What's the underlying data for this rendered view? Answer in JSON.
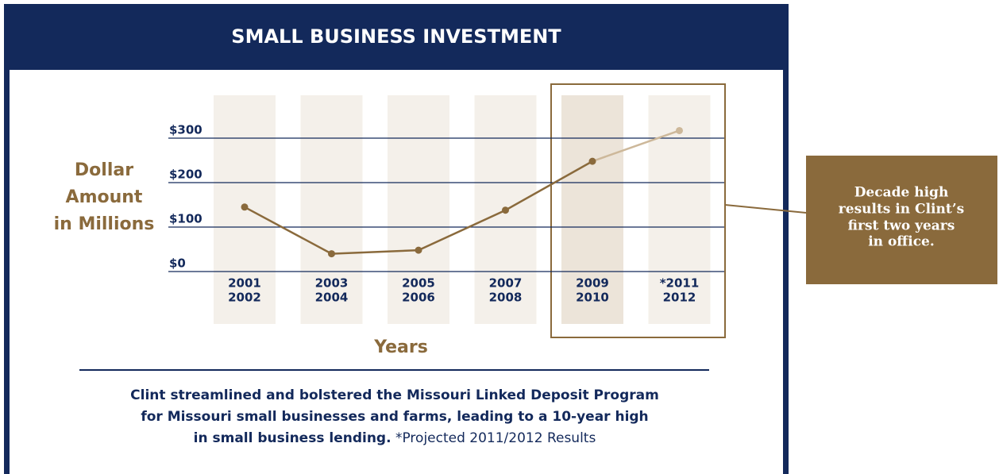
{
  "chart_data": {
    "type": "line",
    "title": "SMALL BUSINESS INVESTMENT",
    "y_label": [
      "Dollar",
      "Amount",
      "in Millions"
    ],
    "x_label": "Years",
    "categories": [
      [
        "2001",
        "2002"
      ],
      [
        "2003",
        "2004"
      ],
      [
        "2005",
        "2006"
      ],
      [
        "2007",
        "2008"
      ],
      [
        "2009",
        "2010"
      ],
      [
        "*2011",
        "2012"
      ]
    ],
    "values": [
      145,
      40,
      48,
      138,
      248,
      317
    ],
    "color": "#8a6a3c",
    "projected_color": "#cdb89a",
    "ylim": [
      0,
      300
    ],
    "yticks": [
      {
        "value": 0,
        "label": "$0"
      },
      {
        "value": 100,
        "label": "$100"
      },
      {
        "value": 200,
        "label": "$200"
      },
      {
        "value": 300,
        "label": "$300"
      }
    ],
    "grid": true,
    "callout": [
      "Decade high",
      "results in Clint’s",
      "first two years",
      "in office."
    ],
    "footnote": {
      "lines": [
        "Clint streamlined and bolstered the Missouri Linked Deposit Program",
        "for Missouri small businesses and farms, leading to a 10-year high",
        "in small business lending."
      ],
      "projected": "*Projected 2011/2012 Results"
    }
  }
}
